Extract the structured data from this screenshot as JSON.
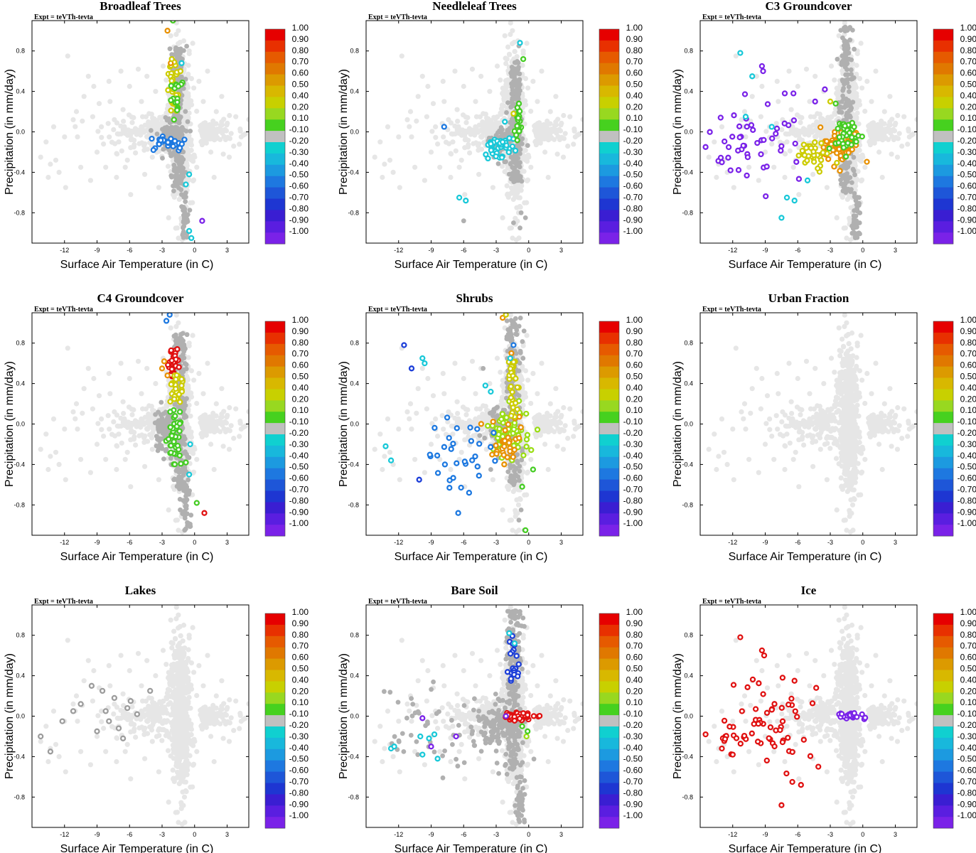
{
  "figure_caption_expt": "Expt = teVTh-tevta",
  "chart_data": [
    {
      "type": "scatter",
      "title": "Broadleaf Trees",
      "xlabel": "Surface Air Temperature (in C)",
      "ylabel": "Precipitation (in mm/day)"
    },
    {
      "type": "scatter",
      "title": "Needleleaf Trees",
      "xlabel": "Surface Air Temperature (in C)",
      "ylabel": "Precipitation (in mm/day)"
    },
    {
      "type": "scatter",
      "title": "C3 Groundcover",
      "xlabel": "Surface Air Temperature (in C)",
      "ylabel": "Precipitation (in mm/day)"
    },
    {
      "type": "scatter",
      "title": "C4 Groundcover",
      "xlabel": "Surface Air Temperature (in C)",
      "ylabel": "Precipitation (in mm/day)"
    },
    {
      "type": "scatter",
      "title": "Shrubs",
      "xlabel": "Surface Air Temperature (in C)",
      "ylabel": "Precipitation (in mm/day)"
    },
    {
      "type": "scatter",
      "title": "Urban Fraction",
      "xlabel": "Surface Air Temperature (in C)",
      "ylabel": "Precipitation (in mm/day)"
    },
    {
      "type": "scatter",
      "title": "Lakes",
      "xlabel": "Surface Air Temperature (in C)",
      "ylabel": "Precipitation (in mm/day)"
    },
    {
      "type": "scatter",
      "title": "Bare Soil",
      "xlabel": "Surface Air Temperature (in C)",
      "ylabel": "Precipitation (in mm/day)"
    },
    {
      "type": "scatter",
      "title": "Ice",
      "xlabel": "Surface Air Temperature (in C)",
      "ylabel": "Precipitation (in mm/day)"
    }
  ],
  "x_ticks": [
    "-12",
    "-9",
    "-6",
    "-3",
    "0",
    "3"
  ],
  "x_tick_values": [
    -12,
    -9,
    -6,
    -3,
    0,
    3
  ],
  "x_range": [
    -15,
    5
  ],
  "y_ticks": [
    "0.8",
    "0.4",
    "0.0",
    "-0.4",
    "-0.8"
  ],
  "y_tick_values": [
    0.8,
    0.4,
    0.0,
    -0.4,
    -0.8
  ],
  "y_range": [
    -1.1,
    1.1
  ],
  "colorbar": {
    "labels": [
      "1.00",
      "0.90",
      "0.80",
      "0.70",
      "0.60",
      "0.50",
      "0.40",
      "0.20",
      "0.10",
      "-0.10",
      "-0.20",
      "-0.30",
      "-0.40",
      "-0.50",
      "-0.60",
      "-0.70",
      "-0.80",
      "-0.90",
      "-1.00"
    ],
    "colors": [
      "#e60000",
      "#e83000",
      "#e65a00",
      "#e07800",
      "#dc9a00",
      "#d8b800",
      "#c8d000",
      "#98d820",
      "#46d11f",
      "#c0c0c0",
      "#10d0d0",
      "#18b8dc",
      "#1c9ae0",
      "#1e78e0",
      "#1e56d8",
      "#1e36d2",
      "#3a1ed2",
      "#5a1ee0",
      "#7a22e8"
    ]
  },
  "palette": {
    "background_point": "#e6e6e6",
    "mid_point": "#b0b0b0",
    "dark_point": "#9c9c9c",
    "red": "#e01010",
    "orange": "#e89000",
    "yellow": "#cccc00",
    "lime": "#99dd11",
    "green": "#44cc22",
    "cyan": "#18c8d8",
    "blue": "#1c78e0",
    "dblue": "#1c3ed8",
    "purple": "#7a22e8"
  }
}
